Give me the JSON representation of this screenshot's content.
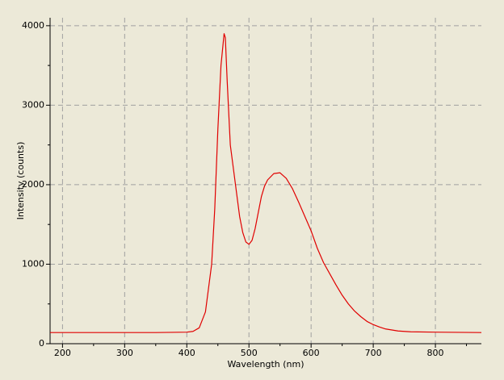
{
  "chart_data": {
    "type": "line",
    "x_label": "Wavelength (nm)",
    "y_label": "Intensity (counts)",
    "x": [
      180,
      250,
      300,
      350,
      400,
      410,
      420,
      430,
      440,
      445,
      450,
      455,
      460,
      462,
      465,
      470,
      475,
      480,
      485,
      490,
      495,
      500,
      505,
      510,
      515,
      520,
      525,
      530,
      540,
      550,
      560,
      570,
      580,
      590,
      600,
      610,
      620,
      630,
      640,
      650,
      660,
      670,
      680,
      690,
      700,
      710,
      720,
      740,
      760,
      800,
      874
    ],
    "series": [
      {
        "name": "Intensity",
        "color": "#e00000",
        "values": [
          140,
          140,
          140,
          140,
          145,
          155,
          200,
          400,
          1000,
          1700,
          2700,
          3500,
          3900,
          3850,
          3300,
          2500,
          2200,
          1900,
          1600,
          1400,
          1280,
          1250,
          1300,
          1450,
          1650,
          1850,
          1980,
          2060,
          2140,
          2150,
          2080,
          1950,
          1780,
          1600,
          1420,
          1200,
          1020,
          880,
          740,
          610,
          500,
          410,
          340,
          280,
          240,
          210,
          185,
          160,
          150,
          145,
          140
        ]
      }
    ],
    "xlim": [
      180,
      874
    ],
    "ylim": [
      0,
      4100
    ],
    "xticks": [
      200,
      300,
      400,
      500,
      600,
      700,
      800
    ],
    "yticks": [
      0,
      1000,
      2000,
      3000,
      4000
    ],
    "xminorticks": [
      250,
      350,
      450,
      550,
      650,
      750,
      850
    ],
    "yminorticks": [
      500,
      1500,
      2500,
      3500
    ],
    "grid": true
  }
}
